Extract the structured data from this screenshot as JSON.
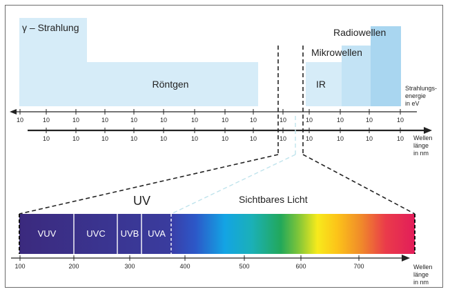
{
  "regions": {
    "gamma": "γ – Strahlung",
    "xray": "Röntgen",
    "ir": "IR",
    "microwaves": "Mikrowellen",
    "radiowaves": "Radiowellen"
  },
  "energy_axis": {
    "tick_label": "10",
    "label": [
      "Strahlungs-",
      "energie",
      "in eV"
    ]
  },
  "wavelength_axis": {
    "tick_label": "10",
    "label": [
      "Wellen",
      "länge",
      "in nm"
    ]
  },
  "spectrum": {
    "uv_title": "UV",
    "visible_title": "Sichtbares Licht",
    "bands": [
      "VUV",
      "UVC",
      "UVB",
      "UVA"
    ],
    "ticks": [
      "100",
      "200",
      "300",
      "400",
      "500",
      "600",
      "700"
    ],
    "axis_label": [
      "Wellen",
      "länge",
      "in nm"
    ]
  },
  "colors": {
    "region_fill": "#d6ecf8",
    "region_fill_dark": "#a9d6f0",
    "uv_band": "#3a2a8a"
  }
}
